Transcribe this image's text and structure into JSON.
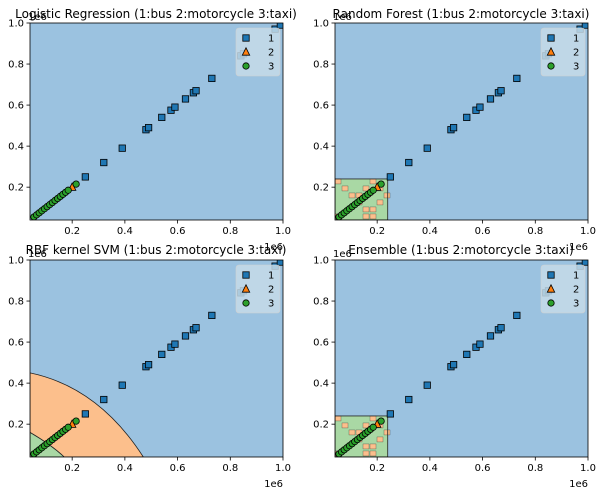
{
  "figure": {
    "panels": [
      {
        "title": "Logistic Regression (1:bus 2:motorcycle 3:taxi)"
      },
      {
        "title": "Random Forest (1:bus 2:motorcycle 3:taxi)"
      },
      {
        "title": "RBF kernel SVM (1:bus 2:motorcycle 3:taxi)"
      },
      {
        "title": "Ensemble (1:bus 2:motorcycle 3:taxi)"
      }
    ],
    "x_ticks": [
      "0.2",
      "0.4",
      "0.6",
      "0.8",
      "1.0"
    ],
    "y_ticks": [
      "0.2",
      "0.4",
      "0.6",
      "0.8",
      "1.0"
    ],
    "x_offset_label": "1e6",
    "y_offset_label": "1e6",
    "legend": [
      {
        "label": "1",
        "marker": "square",
        "color": "#1f77b4"
      },
      {
        "label": "2",
        "marker": "triangle",
        "color": "#ff7f0e"
      },
      {
        "label": "3",
        "marker": "circle",
        "color": "#2ca02c"
      }
    ],
    "region_colors": {
      "class1": "#9bc2e0",
      "class2": "#fcbf8c",
      "class3": "#a9d8a4"
    }
  },
  "chart_data": [
    {
      "type": "scatter",
      "title": "Logistic Regression (1:bus 2:motorcycle 3:taxi)",
      "xlim": [
        40000,
        1000000
      ],
      "ylim": [
        40000,
        1000000
      ],
      "scale_label": "1e6",
      "decision_regions": "class 1 everywhere",
      "series": [
        {
          "name": "1",
          "x": [
            250000,
            320000,
            390000,
            480000,
            490000,
            540000,
            575000,
            590000,
            630000,
            660000,
            670000,
            730000,
            840000,
            850000,
            970000,
            990000
          ],
          "y": [
            250000,
            320000,
            390000,
            480000,
            490000,
            540000,
            575000,
            590000,
            630000,
            660000,
            670000,
            730000,
            840000,
            850000,
            970000,
            990000
          ]
        },
        {
          "name": "2",
          "x": [
            200000
          ],
          "y": [
            200000
          ]
        },
        {
          "name": "3",
          "x": [
            55000,
            65000,
            75000,
            85000,
            95000,
            105000,
            115000,
            125000,
            135000,
            145000,
            155000,
            165000,
            175000,
            185000,
            215000
          ],
          "y": [
            55000,
            65000,
            75000,
            85000,
            95000,
            105000,
            115000,
            125000,
            135000,
            145000,
            155000,
            165000,
            175000,
            185000,
            215000
          ]
        }
      ]
    },
    {
      "type": "scatter",
      "title": "Random Forest (1:bus 2:motorcycle 3:taxi)",
      "xlim": [
        40000,
        1000000
      ],
      "ylim": [
        40000,
        1000000
      ],
      "scale_label": "1e6",
      "decision_regions": "class 3/2 patchwork for x < 240000 and y < 240000, class 1 elsewhere",
      "series": [
        {
          "name": "1",
          "x": [
            250000,
            320000,
            390000,
            480000,
            490000,
            540000,
            575000,
            590000,
            630000,
            660000,
            670000,
            730000,
            840000,
            850000,
            970000,
            990000
          ],
          "y": [
            250000,
            320000,
            390000,
            480000,
            490000,
            540000,
            575000,
            590000,
            630000,
            660000,
            670000,
            730000,
            840000,
            850000,
            970000,
            990000
          ]
        },
        {
          "name": "2",
          "x": [
            200000
          ],
          "y": [
            200000
          ]
        },
        {
          "name": "3",
          "x": [
            55000,
            65000,
            75000,
            85000,
            95000,
            105000,
            115000,
            125000,
            135000,
            145000,
            155000,
            165000,
            175000,
            185000,
            215000
          ],
          "y": [
            55000,
            65000,
            75000,
            85000,
            95000,
            105000,
            115000,
            125000,
            135000,
            145000,
            155000,
            165000,
            175000,
            185000,
            215000
          ]
        }
      ]
    },
    {
      "type": "scatter",
      "title": "RBF kernel SVM (1:bus 2:motorcycle 3:taxi)",
      "xlim": [
        40000,
        1000000
      ],
      "ylim": [
        40000,
        1000000
      ],
      "scale_label": "1e6",
      "decision_regions": "class 2 in a curved band near the origin, small class 3 corner, class 1 elsewhere",
      "series": [
        {
          "name": "1",
          "x": [
            250000,
            320000,
            390000,
            480000,
            490000,
            540000,
            575000,
            590000,
            630000,
            660000,
            670000,
            730000,
            840000,
            850000,
            970000,
            990000
          ],
          "y": [
            250000,
            320000,
            390000,
            480000,
            490000,
            540000,
            575000,
            590000,
            630000,
            660000,
            670000,
            730000,
            840000,
            850000,
            970000,
            990000
          ]
        },
        {
          "name": "2",
          "x": [
            200000
          ],
          "y": [
            200000
          ]
        },
        {
          "name": "3",
          "x": [
            55000,
            65000,
            75000,
            85000,
            95000,
            105000,
            115000,
            125000,
            135000,
            145000,
            155000,
            165000,
            175000,
            185000,
            215000
          ],
          "y": [
            55000,
            65000,
            75000,
            85000,
            95000,
            105000,
            115000,
            125000,
            135000,
            145000,
            155000,
            165000,
            175000,
            185000,
            215000
          ]
        }
      ]
    },
    {
      "type": "scatter",
      "title": "Ensemble (1:bus 2:motorcycle 3:taxi)",
      "xlim": [
        40000,
        1000000
      ],
      "ylim": [
        40000,
        1000000
      ],
      "scale_label": "1e6",
      "decision_regions": "class 3/2 patchwork for x < 240000 and y < 240000, class 1 elsewhere",
      "series": [
        {
          "name": "1",
          "x": [
            250000,
            320000,
            390000,
            480000,
            490000,
            540000,
            575000,
            590000,
            630000,
            660000,
            670000,
            730000,
            840000,
            850000,
            970000,
            990000
          ],
          "y": [
            250000,
            320000,
            390000,
            480000,
            490000,
            540000,
            575000,
            590000,
            630000,
            660000,
            670000,
            730000,
            840000,
            850000,
            970000,
            990000
          ]
        },
        {
          "name": "2",
          "x": [
            200000
          ],
          "y": [
            200000
          ]
        },
        {
          "name": "3",
          "x": [
            55000,
            65000,
            75000,
            85000,
            95000,
            105000,
            115000,
            125000,
            135000,
            145000,
            155000,
            165000,
            175000,
            185000,
            215000
          ],
          "y": [
            55000,
            65000,
            75000,
            85000,
            95000,
            105000,
            115000,
            125000,
            135000,
            145000,
            155000,
            165000,
            175000,
            185000,
            215000
          ]
        }
      ]
    }
  ]
}
